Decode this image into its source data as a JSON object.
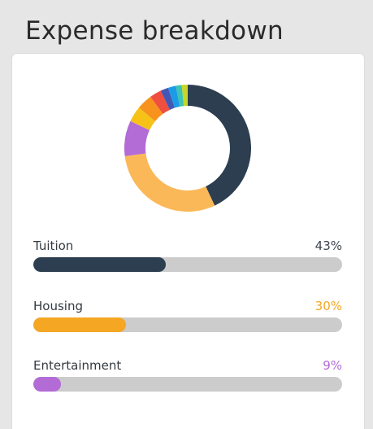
{
  "page": {
    "title": "Expense breakdown"
  },
  "chart_data": [
    {
      "type": "pie",
      "donut": true,
      "legend": "none",
      "slices": [
        {
          "value": 43,
          "color": "#2c3e50"
        },
        {
          "value": 30,
          "color": "#fbb858"
        },
        {
          "value": 9,
          "color": "#b36bd6"
        },
        {
          "value": 4,
          "color": "#f6c218"
        },
        {
          "value": 4,
          "color": "#f7921e"
        },
        {
          "value": 3,
          "color": "#f04e3e"
        },
        {
          "value": 2,
          "color": "#4457b4"
        },
        {
          "value": 2,
          "color": "#1c9be6"
        },
        {
          "value": 1.5,
          "color": "#3cc4b4"
        },
        {
          "value": 1.5,
          "color": "#c7d628"
        }
      ]
    },
    {
      "type": "bar",
      "orientation": "horizontal",
      "xlim": [
        0,
        100
      ],
      "categories": [
        "Tuition",
        "Housing",
        "Entertainment"
      ],
      "values": [
        43,
        30,
        9
      ],
      "value_labels": [
        "43%",
        "30%",
        "9%"
      ],
      "colors": [
        "#2c3e50",
        "#f5a623",
        "#b36bd6"
      ],
      "label_colors": [
        "#3d4650",
        "#f5a623",
        "#b36bd6"
      ]
    }
  ]
}
